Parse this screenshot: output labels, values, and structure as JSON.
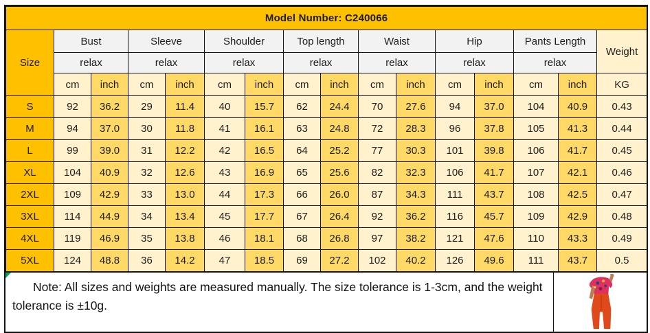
{
  "title": "Model Number: C240066",
  "table": {
    "size_label": "Size",
    "weight_label": "Weight",
    "weight_unit": "KG",
    "units": {
      "cm": "cm",
      "inch": "inch"
    },
    "groups": [
      {
        "label": "Bust",
        "sub": "relax"
      },
      {
        "label": "Sleeve",
        "sub": "relax"
      },
      {
        "label": "Shoulder",
        "sub": "relax"
      },
      {
        "label": "Top length",
        "sub": "relax"
      },
      {
        "label": "Waist",
        "sub": "relax"
      },
      {
        "label": "Hip",
        "sub": "relax"
      },
      {
        "label": "Pants Length",
        "sub": "relax"
      }
    ],
    "rows": [
      {
        "size": "S",
        "values": [
          "92",
          "36.2",
          "29",
          "11.4",
          "40",
          "15.7",
          "62",
          "24.4",
          "70",
          "27.6",
          "94",
          "37.0",
          "104",
          "40.9"
        ],
        "weight": "0.43"
      },
      {
        "size": "M",
        "values": [
          "94",
          "37.0",
          "30",
          "11.8",
          "41",
          "16.1",
          "63",
          "24.8",
          "72",
          "28.3",
          "96",
          "37.8",
          "105",
          "41.3"
        ],
        "weight": "0.44"
      },
      {
        "size": "L",
        "values": [
          "99",
          "39.0",
          "31",
          "12.2",
          "42",
          "16.5",
          "64",
          "25.2",
          "77",
          "30.3",
          "101",
          "39.8",
          "106",
          "41.7"
        ],
        "weight": "0.45"
      },
      {
        "size": "XL",
        "values": [
          "104",
          "40.9",
          "32",
          "12.6",
          "43",
          "16.9",
          "65",
          "25.6",
          "82",
          "32.3",
          "106",
          "41.7",
          "107",
          "42.1"
        ],
        "weight": "0.46"
      },
      {
        "size": "2XL",
        "values": [
          "109",
          "42.9",
          "33",
          "13.0",
          "44",
          "17.3",
          "66",
          "26.0",
          "87",
          "34.3",
          "111",
          "43.7",
          "108",
          "42.5"
        ],
        "weight": "0.47"
      },
      {
        "size": "3XL",
        "values": [
          "114",
          "44.9",
          "34",
          "13.4",
          "45",
          "17.7",
          "67",
          "26.4",
          "92",
          "36.2",
          "116",
          "45.7",
          "109",
          "42.9"
        ],
        "weight": "0.48"
      },
      {
        "size": "4XL",
        "values": [
          "119",
          "46.9",
          "35",
          "13.8",
          "46",
          "18.1",
          "68",
          "26.8",
          "97",
          "38.2",
          "121",
          "47.6",
          "110",
          "43.3"
        ],
        "weight": "0.49"
      },
      {
        "size": "5XL",
        "values": [
          "124",
          "48.8",
          "36",
          "14.2",
          "47",
          "18.5",
          "69",
          "27.2",
          "102",
          "40.2",
          "126",
          "49.6",
          "111",
          "43.7"
        ],
        "weight": "0.5"
      }
    ]
  },
  "note": {
    "text": "Note: All sizes and weights are  measured manually. The size tolerance is 1-3cm, and the weight tolerance is ±10g."
  },
  "colors": {
    "gold": "#FFC000",
    "light_gold": "#FFD966",
    "cream": "#FFF2CC",
    "header_gray": "#F2F2F2",
    "flag_green": "#00A651",
    "pants_orange": "#E0491A",
    "top_pink": "#DE3160"
  }
}
